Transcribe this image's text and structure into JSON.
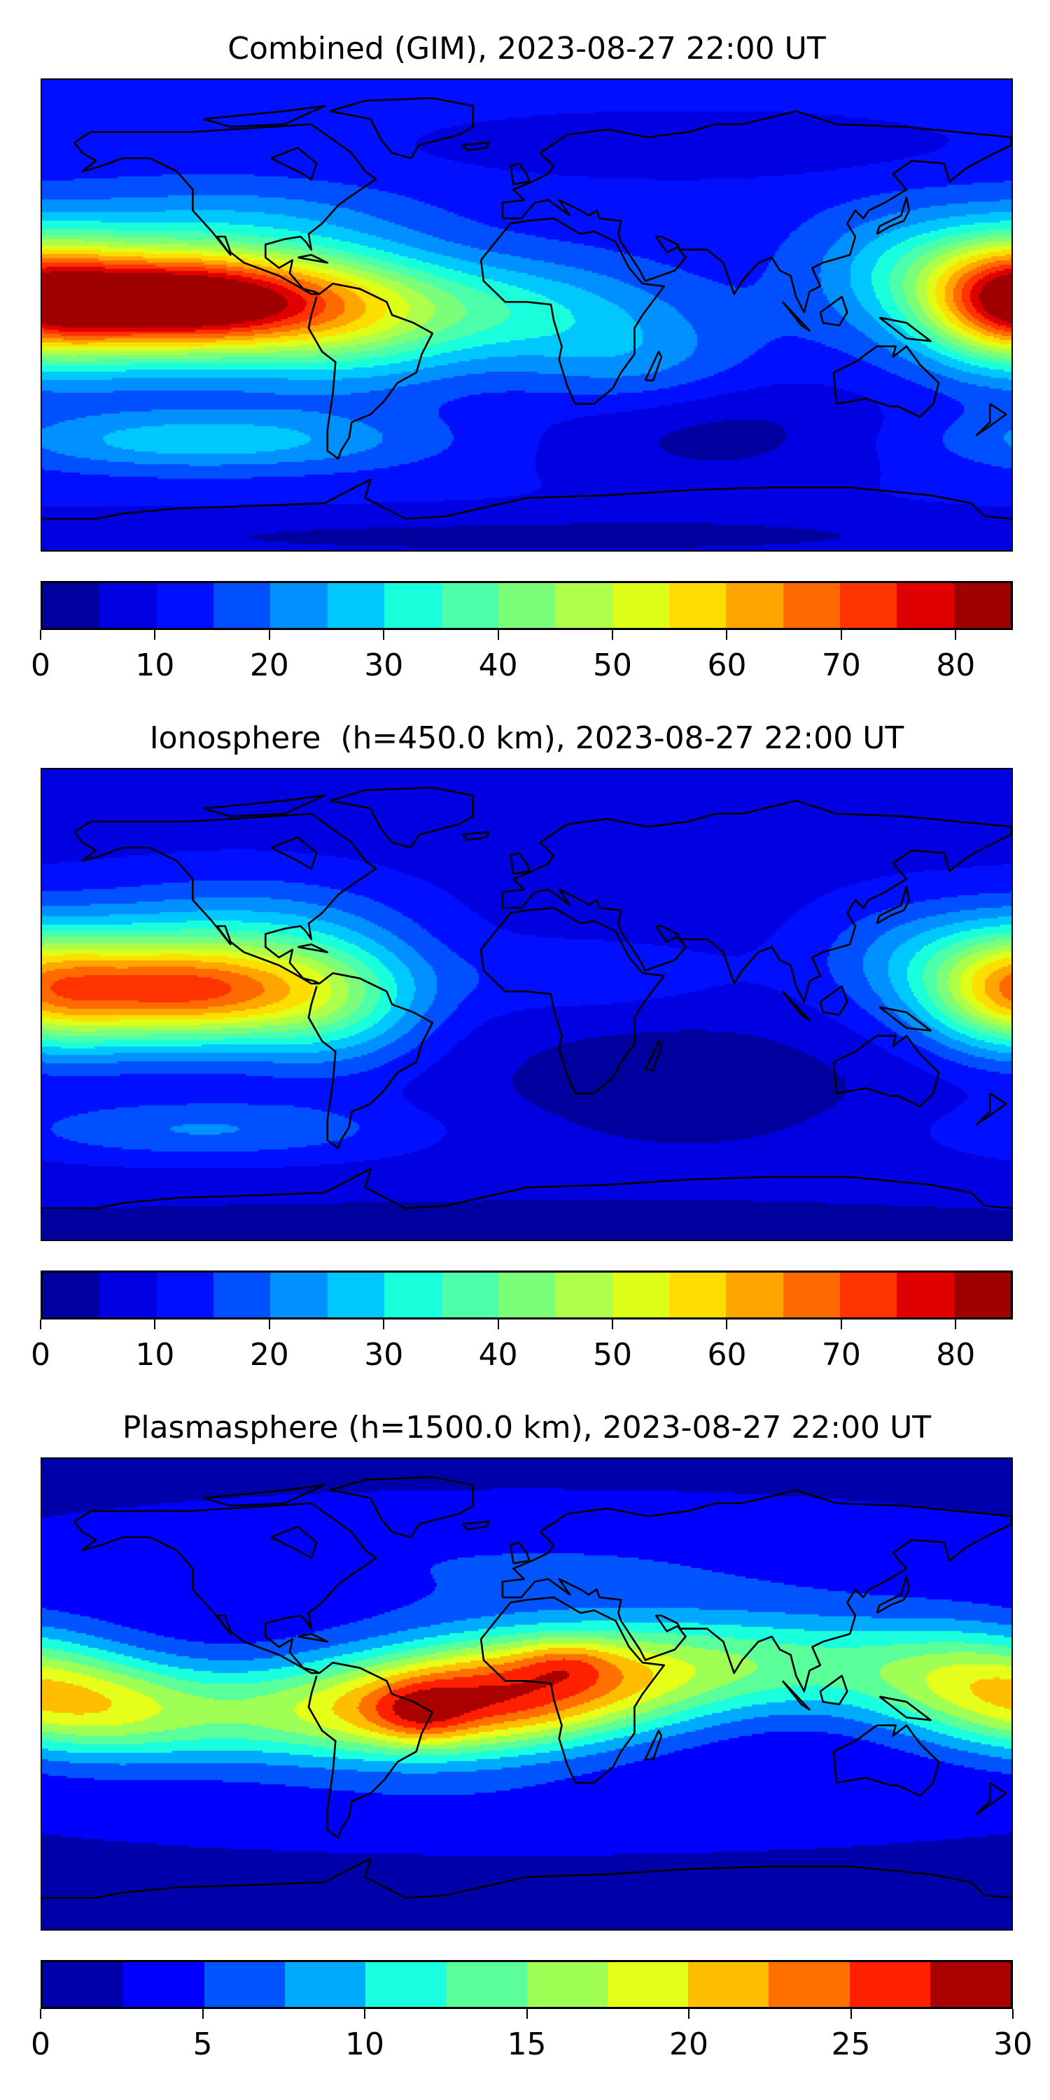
{
  "chart_data": [
    {
      "type": "heatmap",
      "title": "Combined (GIM), 2023-08-27 22:00 UT",
      "projection": "equirectangular, lon -180..180, lat -90..90, coastlines",
      "levels": [
        0,
        5,
        10,
        15,
        20,
        25,
        30,
        35,
        40,
        45,
        50,
        55,
        60,
        65,
        70,
        75,
        80,
        85
      ],
      "colors": [
        "#00009f",
        "#0000e0",
        "#0010ff",
        "#0050ff",
        "#0090ff",
        "#00c8ff",
        "#1affdb",
        "#4bffab",
        "#7bff7b",
        "#adff49",
        "#ddff1a",
        "#ffdd00",
        "#ffa500",
        "#ff6a00",
        "#ff3300",
        "#e00000",
        "#9f0000"
      ],
      "colorbar_ticks": [
        "0",
        "10",
        "20",
        "30",
        "40",
        "50",
        "60",
        "70",
        "80"
      ],
      "colorbar_tick_values": [
        0,
        10,
        20,
        30,
        40,
        50,
        60,
        70,
        80
      ],
      "vrange": [
        0,
        85
      ],
      "base_value": 12,
      "field_features": [
        {
          "lon": -125,
          "lat": 5,
          "value": 60,
          "slon": 38,
          "slat": 13
        },
        {
          "lon": -150,
          "lat": 8,
          "value": 25,
          "slon": 50,
          "slat": 20
        },
        {
          "lon": 178,
          "lat": 6,
          "value": 38,
          "slon": 22,
          "slat": 16
        },
        {
          "lon": -65,
          "lat": 0,
          "value": 22,
          "slon": 30,
          "slat": 18
        },
        {
          "lon": -10,
          "lat": 2,
          "value": 18,
          "slon": 40,
          "slat": 14
        },
        {
          "lon": 40,
          "lat": -18,
          "value": 10,
          "slon": 30,
          "slat": 14
        },
        {
          "lon": 140,
          "lat": 20,
          "value": 10,
          "slon": 25,
          "slat": 15
        },
        {
          "lon": -120,
          "lat": -48,
          "value": 16,
          "slon": 55,
          "slat": 8
        },
        {
          "lon": 70,
          "lat": -45,
          "value": -9,
          "slon": 50,
          "slat": 16
        },
        {
          "lon": 60,
          "lat": 65,
          "value": -6,
          "slon": 70,
          "slat": 9
        },
        {
          "lon": -100,
          "lat": 38,
          "value": 6,
          "slon": 40,
          "slat": 10
        },
        {
          "lon": 0,
          "lat": -85,
          "value": -8,
          "slon": 200,
          "slat": 8
        }
      ]
    },
    {
      "type": "heatmap",
      "title": "Ionosphere  (h=450.0 km), 2023-08-27 22:00 UT",
      "projection": "equirectangular, lon -180..180, lat -90..90, coastlines",
      "levels": [
        0,
        5,
        10,
        15,
        20,
        25,
        30,
        35,
        40,
        45,
        50,
        55,
        60,
        65,
        70,
        75,
        80,
        85
      ],
      "colors": [
        "#00009f",
        "#0000e0",
        "#0010ff",
        "#0050ff",
        "#0090ff",
        "#00c8ff",
        "#1affdb",
        "#4bffab",
        "#7bff7b",
        "#adff49",
        "#ddff1a",
        "#ffdd00",
        "#ffa500",
        "#ff6a00",
        "#ff3300",
        "#e00000",
        "#9f0000"
      ],
      "colorbar_ticks": [
        "0",
        "10",
        "20",
        "30",
        "40",
        "50",
        "60",
        "70",
        "80"
      ],
      "colorbar_tick_values": [
        0,
        10,
        20,
        30,
        40,
        50,
        60,
        70,
        80
      ],
      "vrange": [
        0,
        85
      ],
      "base_value": 8,
      "field_features": [
        {
          "lon": -125,
          "lat": 5,
          "value": 45,
          "slon": 38,
          "slat": 13
        },
        {
          "lon": -150,
          "lat": 8,
          "value": 18,
          "slon": 50,
          "slat": 20
        },
        {
          "lon": 178,
          "lat": 6,
          "value": 28,
          "slon": 22,
          "slat": 16
        },
        {
          "lon": -70,
          "lat": 0,
          "value": 18,
          "slon": 25,
          "slat": 18
        },
        {
          "lon": -100,
          "lat": 30,
          "value": 10,
          "slon": 40,
          "slat": 15
        },
        {
          "lon": 20,
          "lat": 10,
          "value": 6,
          "slon": 40,
          "slat": 10
        },
        {
          "lon": 140,
          "lat": 20,
          "value": 8,
          "slon": 25,
          "slat": 15
        },
        {
          "lon": -120,
          "lat": -48,
          "value": 12,
          "slon": 55,
          "slat": 8
        },
        {
          "lon": 60,
          "lat": -30,
          "value": -6,
          "slon": 60,
          "slat": 20
        },
        {
          "lon": 0,
          "lat": -85,
          "value": -6,
          "slon": 200,
          "slat": 8
        }
      ]
    },
    {
      "type": "heatmap",
      "title": "Plasmasphere (h=1500.0 km), 2023-08-27 22:00 UT",
      "projection": "equirectangular, lon -180..180, lat -90..90, coastlines",
      "levels": [
        0,
        2.5,
        5,
        7.5,
        10,
        12.5,
        15,
        17.5,
        20,
        22.5,
        25,
        27.5,
        30
      ],
      "colors": [
        "#0000aa",
        "#0000ff",
        "#0055ff",
        "#00aaff",
        "#1affdd",
        "#5aff99",
        "#a0ff55",
        "#e5ff1a",
        "#ffbf00",
        "#ff7000",
        "#ff2000",
        "#aa0000"
      ],
      "colorbar_ticks": [
        "0",
        "5",
        "10",
        "15",
        "20",
        "25",
        "30"
      ],
      "colorbar_tick_values": [
        0,
        5,
        10,
        15,
        20,
        25,
        30
      ],
      "vrange": [
        0,
        30
      ],
      "base_value": 2,
      "field_features": [
        {
          "lon": -90,
          "lat": -8,
          "value": 10,
          "slon": 60,
          "slat": 14
        },
        {
          "lon": -30,
          "lat": -3,
          "value": 13,
          "slon": 40,
          "slat": 15
        },
        {
          "lon": 15,
          "lat": 5,
          "value": 13,
          "slon": 40,
          "slat": 15
        },
        {
          "lon": -40,
          "lat": -8,
          "value": 5,
          "slon": 12,
          "slat": 8
        },
        {
          "lon": 15,
          "lat": 12,
          "value": 4,
          "slon": 12,
          "slat": 6
        },
        {
          "lon": 90,
          "lat": 12,
          "value": 10,
          "slon": 50,
          "slat": 14
        },
        {
          "lon": 165,
          "lat": 5,
          "value": 10,
          "slon": 30,
          "slat": 15
        },
        {
          "lon": -160,
          "lat": -5,
          "value": 9,
          "slon": 30,
          "slat": 14
        },
        {
          "lon": 0,
          "lat": 50,
          "value": 3,
          "slon": 120,
          "slat": 15
        },
        {
          "lon": 0,
          "lat": -45,
          "value": 2,
          "slon": 120,
          "slat": 10
        }
      ]
    }
  ]
}
